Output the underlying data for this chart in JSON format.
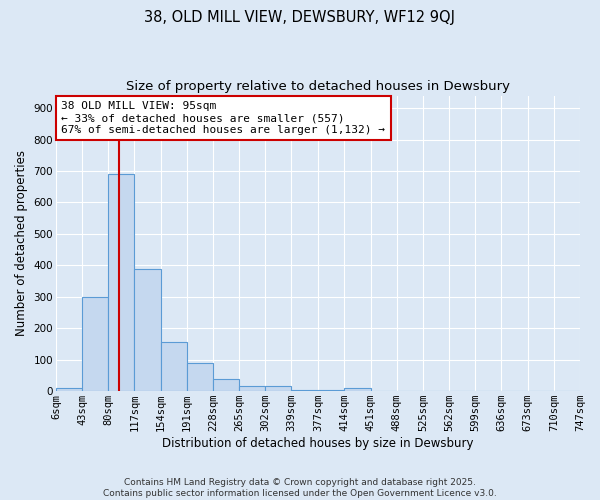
{
  "title1": "38, OLD MILL VIEW, DEWSBURY, WF12 9QJ",
  "title2": "Size of property relative to detached houses in Dewsbury",
  "xlabel": "Distribution of detached houses by size in Dewsbury",
  "ylabel": "Number of detached properties",
  "bar_edges": [
    6,
    43,
    80,
    117,
    154,
    191,
    228,
    265,
    302,
    339,
    377,
    414,
    451,
    488,
    525,
    562,
    599,
    636,
    673,
    710,
    747
  ],
  "bar_heights": [
    10,
    300,
    690,
    390,
    155,
    90,
    40,
    15,
    15,
    5,
    5,
    10,
    0,
    0,
    0,
    0,
    0,
    0,
    0,
    0
  ],
  "bar_color": "#c5d8ef",
  "bar_edge_color": "#5b9bd5",
  "property_size": 95,
  "vline_color": "#cc0000",
  "annotation_line1": "38 OLD MILL VIEW: 95sqm",
  "annotation_line2": "← 33% of detached houses are smaller (557)",
  "annotation_line3": "67% of semi-detached houses are larger (1,132) →",
  "annotation_box_color": "#ffffff",
  "annotation_box_edge": "#cc0000",
  "ylim": [
    0,
    940
  ],
  "yticks": [
    0,
    100,
    200,
    300,
    400,
    500,
    600,
    700,
    800,
    900
  ],
  "background_color": "#dce8f5",
  "grid_color": "#ffffff",
  "fig_background": "#dce8f5",
  "footer_text": "Contains HM Land Registry data © Crown copyright and database right 2025.\nContains public sector information licensed under the Open Government Licence v3.0.",
  "title_fontsize": 10.5,
  "subtitle_fontsize": 9.5,
  "axis_label_fontsize": 8.5,
  "tick_fontsize": 7.5,
  "annotation_fontsize": 8,
  "footer_fontsize": 6.5
}
